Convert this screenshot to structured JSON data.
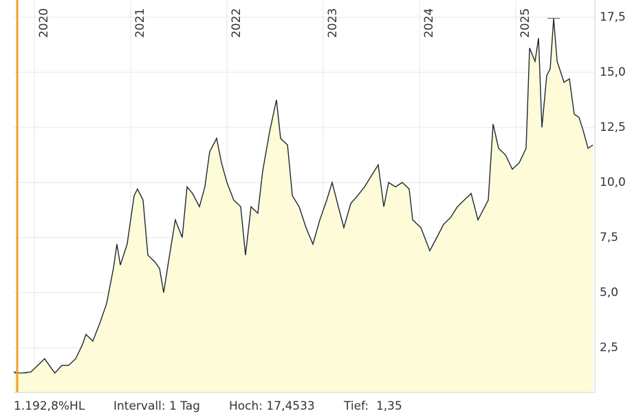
{
  "chart_data": {
    "type": "area",
    "x": [
      2019.786,
      2019.857,
      2019.964,
      2020.036,
      2020.107,
      2020.179,
      2020.214,
      2020.286,
      2020.357,
      2020.429,
      2020.5,
      2020.536,
      2020.607,
      2020.679,
      2020.75,
      2020.821,
      2020.857,
      2020.893,
      2020.964,
      2021.036,
      2021.071,
      2021.129,
      2021.179,
      2021.25,
      2021.3,
      2021.343,
      2021.393,
      2021.464,
      2021.536,
      2021.586,
      2021.643,
      2021.714,
      2021.771,
      2021.821,
      2021.893,
      2021.943,
      2022.0,
      2022.071,
      2022.143,
      2022.193,
      2022.25,
      2022.321,
      2022.371,
      2022.443,
      2022.514,
      2022.557,
      2022.629,
      2022.679,
      2022.75,
      2022.821,
      2022.893,
      2022.964,
      2023.036,
      2023.093,
      2023.157,
      2023.214,
      2023.286,
      2023.357,
      2023.429,
      2023.5,
      2023.571,
      2023.629,
      2023.679,
      2023.75,
      2023.821,
      2023.893,
      2023.929,
      2024.014,
      2024.107,
      2024.179,
      2024.25,
      2024.321,
      2024.393,
      2024.464,
      2024.536,
      2024.607,
      2024.714,
      2024.764,
      2024.821,
      2024.893,
      2024.964,
      2025.036,
      2025.107,
      2025.143,
      2025.2,
      2025.236,
      2025.271,
      2025.321,
      2025.357,
      2025.393,
      2025.429,
      2025.5,
      2025.557,
      2025.607,
      2025.657,
      2025.7,
      2025.75,
      2025.8
    ],
    "values": [
      1.4,
      1.35,
      1.4,
      1.7,
      2.0,
      1.55,
      1.35,
      1.7,
      1.7,
      2.0,
      2.65,
      3.1,
      2.8,
      3.6,
      4.5,
      6.1,
      7.2,
      6.25,
      7.2,
      9.4,
      9.7,
      9.2,
      6.7,
      6.4,
      6.1,
      5.0,
      6.4,
      8.3,
      7.5,
      9.8,
      9.5,
      8.9,
      9.8,
      11.4,
      12.0,
      10.9,
      10.0,
      9.2,
      8.9,
      6.7,
      8.9,
      8.6,
      10.5,
      12.3,
      13.75,
      12.0,
      11.7,
      9.4,
      8.9,
      7.95,
      7.2,
      8.3,
      9.2,
      10.0,
      8.9,
      7.95,
      9.05,
      9.4,
      9.8,
      10.3,
      10.8,
      8.9,
      10.0,
      9.8,
      10.0,
      9.7,
      8.3,
      7.95,
      6.9,
      7.5,
      8.1,
      8.4,
      8.9,
      9.2,
      9.5,
      8.3,
      9.2,
      12.65,
      11.55,
      11.25,
      10.6,
      10.9,
      11.55,
      16.1,
      15.5,
      16.55,
      12.5,
      14.85,
      15.15,
      17.45,
      15.5,
      14.55,
      14.7,
      13.1,
      12.95,
      12.35,
      11.55,
      11.7
    ],
    "color": "#1c2733",
    "fill": "#fdfbd8",
    "xlim": [
      2019.786,
      2025.821
    ],
    "xticks": [
      2020,
      2021,
      2022,
      2023,
      2024,
      2025
    ],
    "ylim": [
      0.47,
      18.28
    ],
    "yticks": [
      {
        "value": 2.5,
        "label": "2,5"
      },
      {
        "value": 5.0,
        "label": "5,0"
      },
      {
        "value": 7.5,
        "label": "7,5"
      },
      {
        "value": 10.0,
        "label": "10,0"
      },
      {
        "value": 12.5,
        "label": "12,5"
      },
      {
        "value": 15.0,
        "label": "15,0"
      },
      {
        "value": 17.5,
        "label": "17,5"
      }
    ],
    "grid": true,
    "footer": {
      "change": "1.192,8%HL",
      "interval": "Intervall: 1 Tag",
      "high": "Hoch: 17,4533",
      "low": "Tief:  1,35"
    }
  }
}
